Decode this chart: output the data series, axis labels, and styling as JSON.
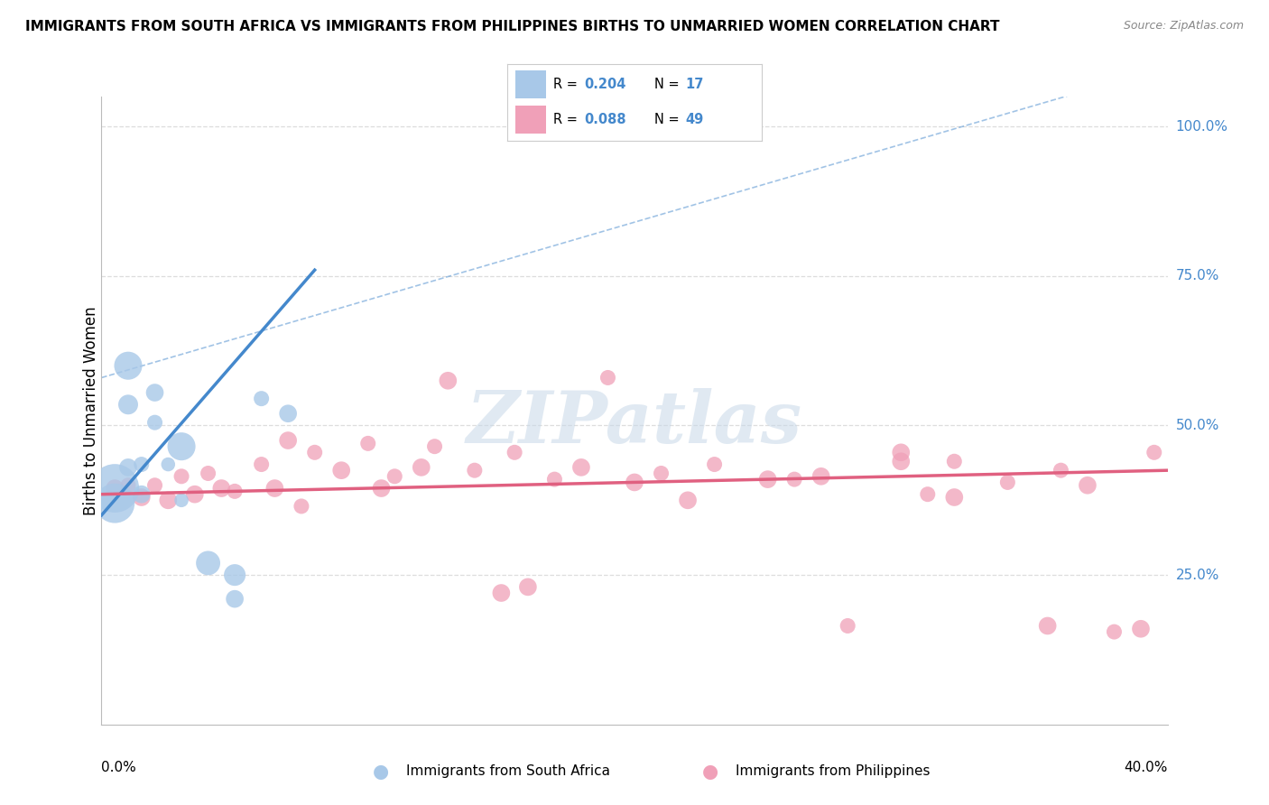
{
  "title": "IMMIGRANTS FROM SOUTH AFRICA VS IMMIGRANTS FROM PHILIPPINES BIRTHS TO UNMARRIED WOMEN CORRELATION CHART",
  "source": "Source: ZipAtlas.com",
  "ylabel": "Births to Unmarried Women",
  "xmin": 0.0,
  "xmax": 0.4,
  "ymin": 0.0,
  "ymax": 1.05,
  "ytick_vals": [
    0.25,
    0.5,
    0.75,
    1.0
  ],
  "ytick_labels": [
    "25.0%",
    "50.0%",
    "75.0%",
    "100.0%"
  ],
  "xtick_vals": [
    0.0,
    0.4
  ],
  "xtick_labels": [
    "0.0%",
    "40.0%"
  ],
  "legend_R_blue": "0.204",
  "legend_N_blue": "17",
  "legend_R_pink": "0.088",
  "legend_N_pink": "49",
  "legend_label_blue": "Immigrants from South Africa",
  "legend_label_pink": "Immigrants from Philippines",
  "blue_color": "#a8c8e8",
  "blue_line_color": "#4488cc",
  "pink_color": "#f0a0b8",
  "pink_line_color": "#e06080",
  "blue_line_x": [
    0.0,
    0.08
  ],
  "blue_line_y": [
    0.35,
    0.76
  ],
  "pink_line_x": [
    0.0,
    0.4
  ],
  "pink_line_y": [
    0.385,
    0.425
  ],
  "diag_line_x": [
    0.0,
    0.4
  ],
  "diag_line_y": [
    0.0,
    1.05
  ],
  "sa_x": [
    0.005,
    0.005,
    0.01,
    0.01,
    0.01,
    0.015,
    0.015,
    0.02,
    0.02,
    0.025,
    0.03,
    0.03,
    0.04,
    0.05,
    0.05,
    0.06,
    0.07
  ],
  "sa_y": [
    0.395,
    0.37,
    0.6,
    0.535,
    0.43,
    0.435,
    0.385,
    0.505,
    0.555,
    0.435,
    0.375,
    0.465,
    0.27,
    0.25,
    0.21,
    0.545,
    0.52
  ],
  "sa_size": [
    600,
    400,
    200,
    100,
    80,
    60,
    80,
    60,
    80,
    50,
    50,
    200,
    150,
    120,
    80,
    60,
    80
  ],
  "ph_x": [
    0.005,
    0.01,
    0.015,
    0.02,
    0.025,
    0.03,
    0.035,
    0.04,
    0.045,
    0.05,
    0.06,
    0.065,
    0.07,
    0.075,
    0.08,
    0.09,
    0.1,
    0.105,
    0.11,
    0.12,
    0.125,
    0.13,
    0.14,
    0.15,
    0.155,
    0.16,
    0.17,
    0.18,
    0.19,
    0.2,
    0.21,
    0.22,
    0.23,
    0.25,
    0.26,
    0.27,
    0.28,
    0.3,
    0.31,
    0.32,
    0.34,
    0.355,
    0.36,
    0.37,
    0.38,
    0.39,
    0.395,
    0.3,
    0.32
  ],
  "ph_y": [
    0.395,
    0.4,
    0.38,
    0.4,
    0.375,
    0.415,
    0.385,
    0.42,
    0.395,
    0.39,
    0.435,
    0.395,
    0.475,
    0.365,
    0.455,
    0.425,
    0.47,
    0.395,
    0.415,
    0.43,
    0.465,
    0.575,
    0.425,
    0.22,
    0.455,
    0.23,
    0.41,
    0.43,
    0.58,
    0.405,
    0.42,
    0.375,
    0.435,
    0.41,
    0.41,
    0.415,
    0.165,
    0.455,
    0.385,
    0.38,
    0.405,
    0.165,
    0.425,
    0.4,
    0.155,
    0.16,
    0.455,
    0.44,
    0.44
  ],
  "ph_size": [
    80,
    60,
    80,
    60,
    80,
    60,
    80,
    60,
    80,
    60,
    60,
    80,
    80,
    60,
    60,
    80,
    60,
    80,
    60,
    80,
    60,
    80,
    60,
    80,
    60,
    80,
    60,
    80,
    60,
    80,
    60,
    80,
    60,
    80,
    60,
    80,
    60,
    80,
    60,
    80,
    60,
    80,
    60,
    80,
    60,
    80,
    60,
    80,
    60
  ],
  "watermark_text": "ZIPatlas",
  "background_color": "#ffffff",
  "grid_color": "#dddddd"
}
